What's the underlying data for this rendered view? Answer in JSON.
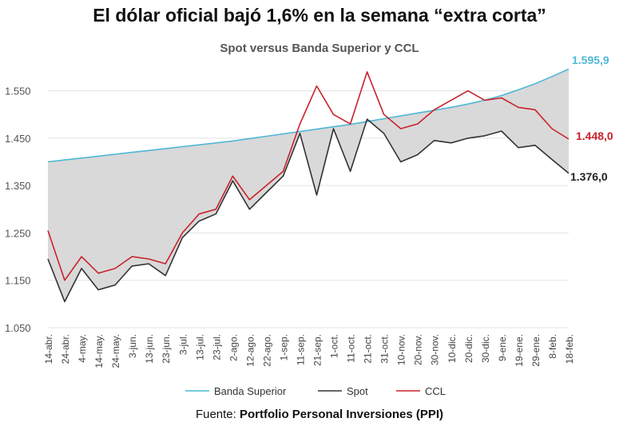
{
  "title": "El dólar oficial bajó 1,6% en la semana “extra corta”",
  "subtitle": "Spot versus Banda Superior y CCL",
  "source": {
    "label": "Fuente:",
    "name": "Portfolio Personal Inversiones (PPI)"
  },
  "colors": {
    "banda": "#4db8d6",
    "spot": "#333333",
    "ccl": "#c8232c",
    "fill": "#d9d9d9",
    "grid": "#e3e3e3"
  },
  "chart_data": {
    "type": "line",
    "title": "Spot versus Banda Superior y CCL",
    "xlabel": "",
    "ylabel": "",
    "ylim": [
      1050,
      1610
    ],
    "y_ticks": [
      "1.050",
      "1.150",
      "1.250",
      "1.350",
      "1.450",
      "1.550"
    ],
    "y_tick_values": [
      1050,
      1150,
      1250,
      1350,
      1450,
      1550
    ],
    "categories": [
      "14-abr.",
      "24-abr.",
      "4-may.",
      "14-may.",
      "24-may.",
      "3-jun.",
      "13-jun.",
      "23-jun.",
      "3-jul.",
      "13-jul.",
      "23-jul.",
      "2-ago.",
      "12-ago.",
      "22-ago.",
      "1-sep.",
      "11-sep.",
      "21-sep.",
      "1-oct.",
      "11-oct.",
      "21-oct.",
      "31-oct.",
      "10-nov.",
      "20-nov.",
      "30-nov.",
      "10-dic.",
      "20-dic.",
      "30-dic.",
      "9-ene.",
      "19-ene.",
      "29-ene.",
      "8-feb.",
      "18-feb."
    ],
    "legend": [
      "Banda Superior",
      "Spot",
      "CCL"
    ],
    "end_labels": {
      "banda": "1.595,9",
      "ccl": "1.448,0",
      "spot": "1.376,0"
    },
    "series": [
      {
        "name": "Banda Superior",
        "values": [
          1400,
          1404,
          1408,
          1412,
          1416,
          1420,
          1424,
          1428,
          1432,
          1436,
          1440,
          1444,
          1449,
          1454,
          1459,
          1464,
          1469,
          1474,
          1479,
          1485,
          1491,
          1497,
          1503,
          1509,
          1515,
          1522,
          1530,
          1540,
          1552,
          1565,
          1580,
          1595.9
        ]
      },
      {
        "name": "Spot",
        "values": [
          1195,
          1105,
          1175,
          1130,
          1140,
          1180,
          1185,
          1160,
          1240,
          1275,
          1290,
          1360,
          1300,
          1335,
          1370,
          1460,
          1330,
          1470,
          1380,
          1490,
          1460,
          1400,
          1415,
          1445,
          1440,
          1450,
          1455,
          1465,
          1430,
          1435,
          1405,
          1376
        ]
      },
      {
        "name": "CCL",
        "values": [
          1255,
          1150,
          1200,
          1165,
          1175,
          1200,
          1195,
          1185,
          1250,
          1290,
          1300,
          1370,
          1320,
          1350,
          1380,
          1480,
          1560,
          1500,
          1480,
          1590,
          1500,
          1470,
          1480,
          1510,
          1530,
          1550,
          1530,
          1535,
          1515,
          1510,
          1470,
          1448
        ]
      }
    ]
  }
}
